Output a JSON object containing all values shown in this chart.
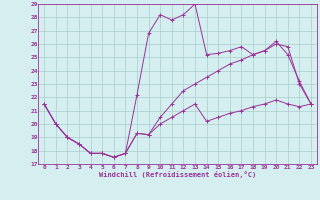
{
  "xlabel": "Windchill (Refroidissement éolien,°C)",
  "x": [
    0,
    1,
    2,
    3,
    4,
    5,
    6,
    7,
    8,
    9,
    10,
    11,
    12,
    13,
    14,
    15,
    16,
    17,
    18,
    19,
    20,
    21,
    22,
    23
  ],
  "line_max": [
    21.5,
    20.0,
    19.0,
    18.5,
    17.8,
    17.8,
    17.5,
    17.8,
    22.2,
    26.8,
    28.2,
    27.8,
    28.2,
    29.0,
    25.2,
    25.3,
    25.5,
    25.8,
    25.2,
    25.5,
    26.2,
    25.2,
    23.2,
    21.5
  ],
  "line_mean": [
    21.5,
    20.0,
    19.0,
    18.5,
    17.8,
    17.8,
    17.5,
    17.8,
    19.3,
    19.2,
    20.5,
    21.5,
    22.5,
    23.0,
    23.5,
    24.0,
    24.5,
    24.8,
    25.2,
    25.5,
    26.0,
    25.8,
    23.0,
    21.5
  ],
  "line_min": [
    21.5,
    20.0,
    19.0,
    18.5,
    17.8,
    17.8,
    17.5,
    17.8,
    19.3,
    19.2,
    20.0,
    20.5,
    21.0,
    21.5,
    20.2,
    20.5,
    20.8,
    21.0,
    21.3,
    21.5,
    21.8,
    21.5,
    21.3,
    21.5
  ],
  "color": "#993399",
  "bg_color": "#d5eef0",
  "grid_color": "#aacccc",
  "ylim": [
    17,
    29
  ],
  "xlim": [
    -0.5,
    23.5
  ],
  "yticks": [
    17,
    18,
    19,
    20,
    21,
    22,
    23,
    24,
    25,
    26,
    27,
    28,
    29
  ],
  "xticks": [
    0,
    1,
    2,
    3,
    4,
    5,
    6,
    7,
    8,
    9,
    10,
    11,
    12,
    13,
    14,
    15,
    16,
    17,
    18,
    19,
    20,
    21,
    22,
    23
  ]
}
